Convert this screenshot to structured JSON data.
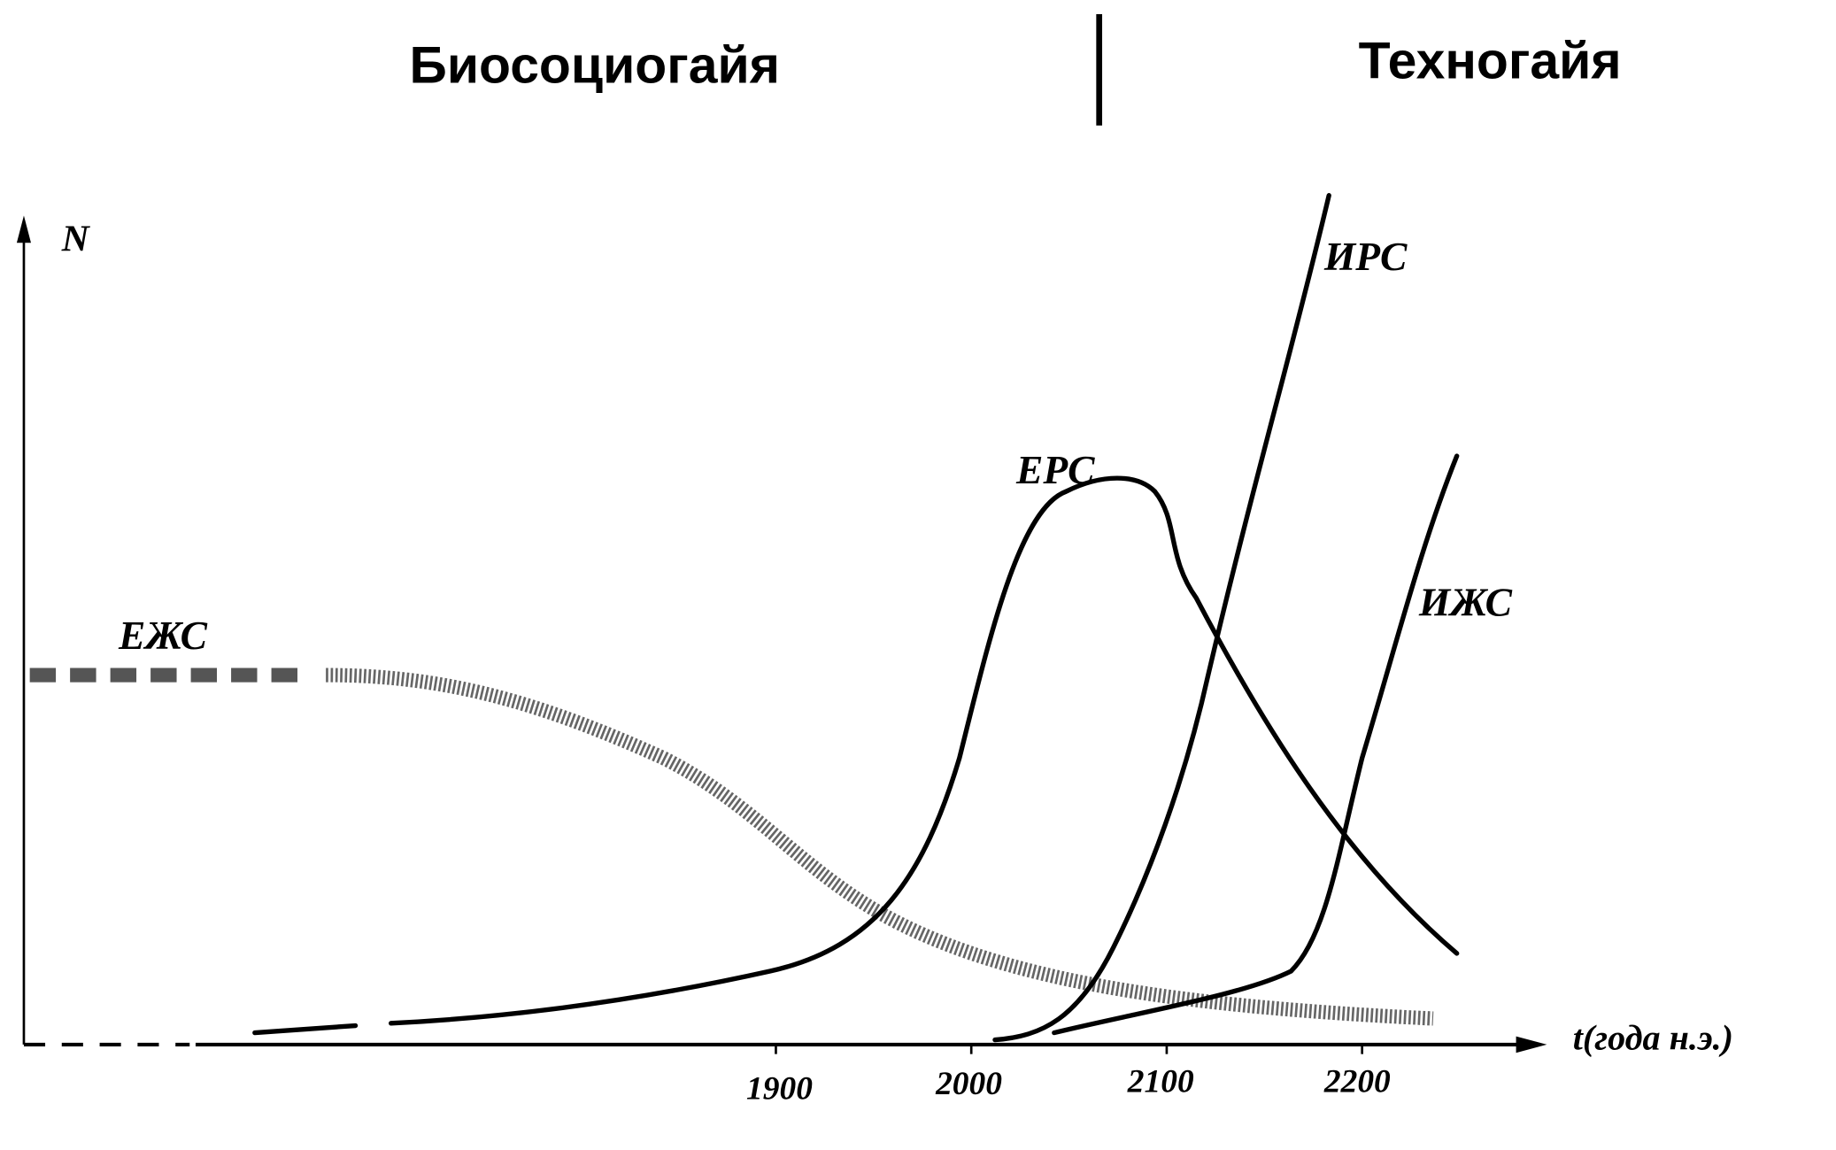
{
  "header": {
    "left": "Биосоциогайя",
    "right": "Техногайя"
  },
  "axes": {
    "y_label": "N",
    "x_label": "t(года н.э.)",
    "x_ticks": [
      "1900",
      "2000",
      "2100",
      "2200"
    ]
  },
  "curves": [
    {
      "label": "ЕЖС"
    },
    {
      "label": "ЕРС"
    },
    {
      "label": "ИРС"
    },
    {
      "label": "ИЖС"
    }
  ]
}
